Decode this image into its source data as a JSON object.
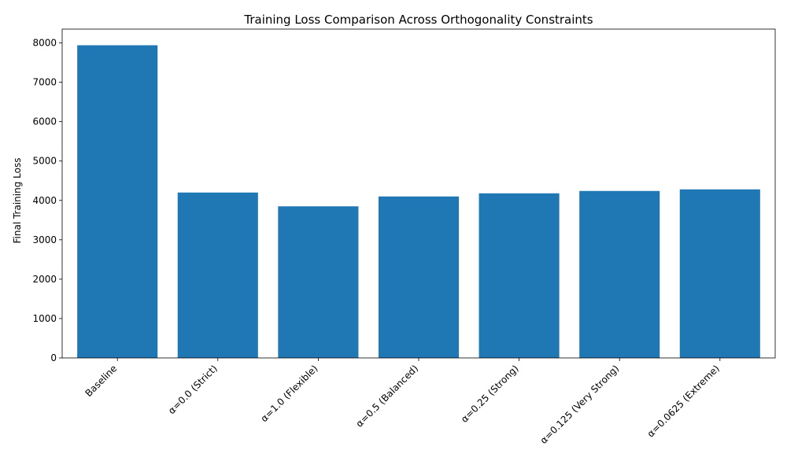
{
  "chart_data": {
    "type": "bar",
    "title": "Training Loss Comparison Across Orthogonality Constraints",
    "xlabel": "",
    "ylabel": "Final Training Loss",
    "categories": [
      "Baseline",
      "α=0.0 (Strict)",
      "α=1.0 (Flexible)",
      "α=0.5 (Balanced)",
      "α=0.25 (Strong)",
      "α=0.125 (Very Strong)",
      "α=0.0625 (Extreme)"
    ],
    "values": [
      7940,
      4200,
      3850,
      4100,
      4180,
      4240,
      4280
    ],
    "ylim": [
      0,
      8350
    ],
    "yticks": [
      0,
      1000,
      2000,
      3000,
      4000,
      5000,
      6000,
      7000,
      8000
    ],
    "bar_color": "#1f77b4",
    "grid": false,
    "legend": "none"
  }
}
